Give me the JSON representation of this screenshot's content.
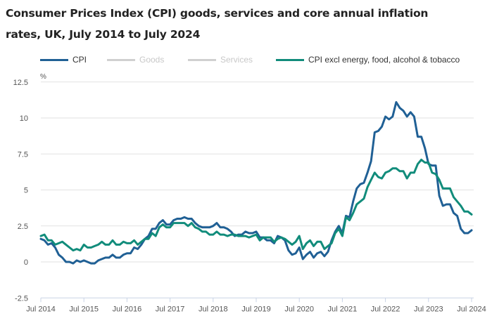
{
  "chart_data": {
    "type": "line",
    "title": "Consumer Prices Index (CPI) goods, services and core annual inflation rates, UK, July 2014 to July 2024",
    "title_lines": [
      "Consumer Prices Index (CPI) goods, services and core annual inflation",
      "rates, UK, July 2014 to July 2024"
    ],
    "xlabel": "",
    "ylabel": "%",
    "ylim": [
      -2.5,
      12.5
    ],
    "yticks": [
      -2.5,
      0,
      2.5,
      5,
      7.5,
      10,
      12.5
    ],
    "ytick_labels": [
      "-2.5",
      "0",
      "2.5",
      "5",
      "7.5",
      "10",
      "12.5"
    ],
    "x_start": "Jul 2014",
    "x_end": "Jul 2024",
    "xtick_labels": [
      "Jul 2014",
      "Jul 2015",
      "Jul 2016",
      "Jul 2017",
      "Jul 2018",
      "Jul 2019",
      "Jul 2020",
      "Jul 2021",
      "Jul 2022",
      "Jul 2023",
      "Jul 2024"
    ],
    "grid": true,
    "legend_position": "top",
    "series": [
      {
        "name": "CPI",
        "color": "#206095",
        "active": true,
        "values": [
          1.6,
          1.5,
          1.2,
          1.3,
          1.0,
          0.5,
          0.3,
          0.0,
          0.0,
          -0.1,
          0.1,
          0.0,
          0.1,
          0.0,
          -0.1,
          -0.1,
          0.1,
          0.2,
          0.3,
          0.3,
          0.5,
          0.3,
          0.3,
          0.5,
          0.6,
          0.6,
          1.0,
          0.9,
          1.2,
          1.6,
          1.8,
          2.3,
          2.3,
          2.7,
          2.9,
          2.6,
          2.6,
          2.9,
          3.0,
          3.0,
          3.1,
          3.0,
          3.0,
          2.7,
          2.5,
          2.4,
          2.4,
          2.4,
          2.5,
          2.7,
          2.4,
          2.4,
          2.3,
          2.1,
          1.8,
          1.9,
          1.9,
          2.1,
          2.0,
          2.0,
          2.1,
          1.7,
          1.7,
          1.5,
          1.5,
          1.3,
          1.8,
          1.7,
          1.5,
          0.8,
          0.5,
          0.6,
          1.0,
          0.2,
          0.5,
          0.7,
          0.3,
          0.6,
          0.7,
          0.4,
          0.7,
          1.5,
          2.1,
          2.5,
          2.0,
          3.2,
          3.1,
          4.2,
          5.1,
          5.4,
          5.5,
          6.2,
          7.0,
          9.0,
          9.1,
          9.4,
          10.1,
          9.9,
          10.1,
          11.1,
          10.7,
          10.5,
          10.1,
          10.4,
          10.1,
          8.7,
          8.7,
          7.9,
          6.8,
          6.7,
          6.7,
          4.6,
          3.9,
          4.0,
          4.0,
          3.4,
          3.2,
          2.3,
          2.0,
          2.0,
          2.2
        ]
      },
      {
        "name": "Goods",
        "color": "#d0d0d0",
        "active": false,
        "values": []
      },
      {
        "name": "Services",
        "color": "#d0d0d0",
        "active": false,
        "values": []
      },
      {
        "name": "CPI excl energy, food, alcohol & tobacco",
        "color": "#118c7b",
        "active": true,
        "values": [
          1.8,
          1.9,
          1.5,
          1.5,
          1.2,
          1.3,
          1.4,
          1.2,
          1.0,
          0.8,
          0.9,
          0.8,
          1.2,
          1.0,
          1.0,
          1.1,
          1.2,
          1.4,
          1.2,
          1.2,
          1.5,
          1.2,
          1.2,
          1.4,
          1.3,
          1.3,
          1.5,
          1.2,
          1.4,
          1.6,
          1.6,
          2.0,
          1.8,
          2.4,
          2.6,
          2.4,
          2.4,
          2.7,
          2.7,
          2.7,
          2.7,
          2.5,
          2.7,
          2.4,
          2.3,
          2.1,
          2.1,
          1.9,
          1.9,
          2.1,
          1.9,
          1.9,
          1.8,
          1.9,
          1.9,
          1.8,
          1.8,
          1.8,
          1.7,
          1.8,
          1.9,
          1.5,
          1.7,
          1.7,
          1.7,
          1.4,
          1.6,
          1.7,
          1.6,
          1.4,
          1.2,
          1.4,
          1.8,
          0.9,
          1.3,
          1.5,
          1.1,
          1.4,
          1.4,
          0.9,
          1.1,
          1.3,
          2.0,
          2.3,
          1.8,
          3.1,
          2.9,
          3.4,
          4.0,
          4.2,
          4.4,
          5.2,
          5.7,
          6.2,
          5.9,
          5.8,
          6.2,
          6.3,
          6.5,
          6.5,
          6.3,
          6.3,
          5.8,
          6.2,
          6.2,
          6.8,
          7.1,
          6.9,
          6.9,
          6.2,
          6.1,
          5.7,
          5.1,
          5.1,
          5.1,
          4.5,
          4.2,
          3.9,
          3.5,
          3.5,
          3.3
        ]
      }
    ]
  },
  "colors": {
    "axis": "#c9d3e6",
    "grid": "#e2e2e2",
    "text": "#222222",
    "tick_text": "#555555",
    "legend_inactive_text": "#c8c8c8",
    "legend_active_text": "#333333"
  }
}
